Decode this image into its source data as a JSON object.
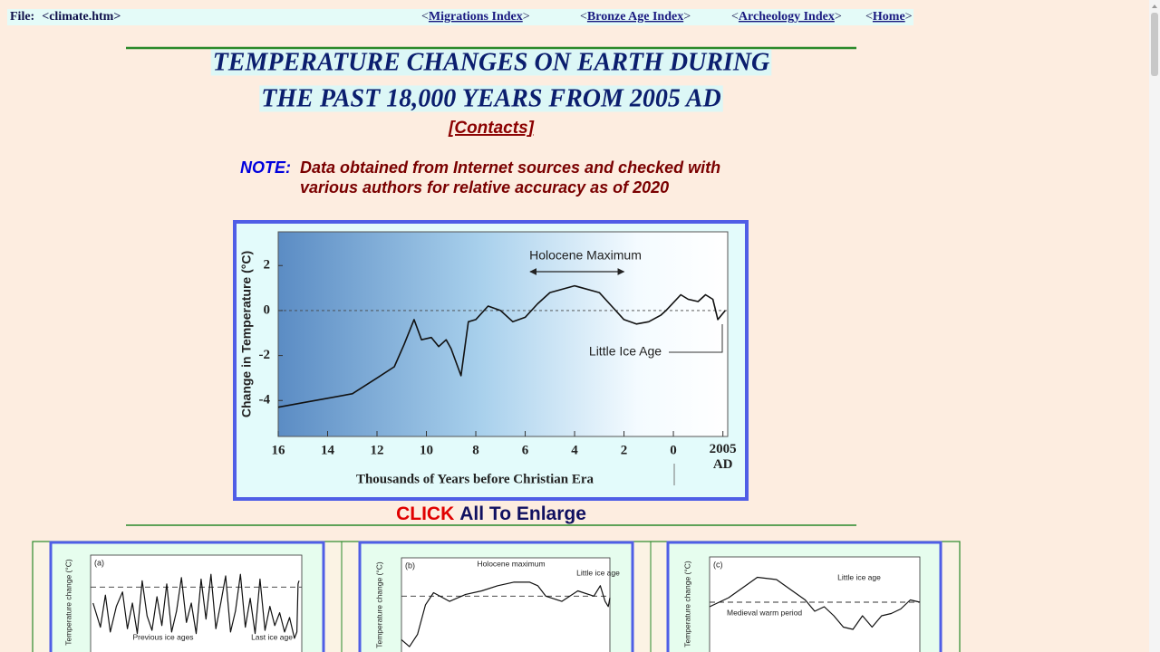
{
  "nav": {
    "file_label": "File:",
    "file_name": "<climate.htm>",
    "links": [
      {
        "open": "<",
        "label": "Migrations Index",
        "close": ">"
      },
      {
        "open": "<",
        "label": "Bronze Age Index",
        "close": ">"
      },
      {
        "open": "<",
        "label": "Archeology Index",
        "close": ">"
      },
      {
        "open": "<",
        "label": "Home",
        "close": ">"
      }
    ]
  },
  "title": [
    "TEMPERATURE CHANGES ON EARTH DURING",
    "THE PAST 18,000 YEARS FROM 2005 AD"
  ],
  "contacts": "[Contacts]",
  "note": {
    "label": "NOTE:",
    "lines": [
      "Data obtained from Internet sources and checked with",
      "various authors for relative accuracy as of 2020"
    ]
  },
  "figure": {
    "y_label": "Change in Temperature (°C)",
    "x_label": "Thousands of Years before Christian Era",
    "annotations": [
      "Holocene Maximum",
      "Little Ice Age"
    ],
    "xlim": [
      16,
      -2.2
    ],
    "ylim": [
      -5.6,
      3.5
    ],
    "xticks": [
      16,
      14,
      12,
      10,
      8,
      6,
      4,
      2,
      0,
      {
        "value": -2.005,
        "label": "2005 AD"
      }
    ],
    "yticks": [
      2,
      0,
      -2,
      -4
    ],
    "x": [
      16,
      15,
      14,
      13,
      12,
      11.3,
      10.9,
      10.5,
      10.2,
      9.8,
      9.5,
      9.2,
      9,
      8.6,
      8.3,
      8,
      7.5,
      7,
      6.5,
      6,
      5.5,
      5,
      4,
      3,
      2.5,
      2,
      1.5,
      1,
      0.5,
      0.3,
      -0.3,
      -0.6,
      -1,
      -1.3,
      -1.6,
      -1.8,
      -2.1
    ],
    "values": [
      -4.3,
      -4.1,
      -3.9,
      -3.7,
      -3.0,
      -2.5,
      -1.5,
      -0.4,
      -1.3,
      -1.2,
      -1.6,
      -1.3,
      -1.7,
      -2.9,
      -0.5,
      -0.4,
      0.2,
      0.0,
      -0.5,
      -0.3,
      0.3,
      0.8,
      1.1,
      0.8,
      0.2,
      -0.4,
      -0.6,
      -0.5,
      -0.2,
      0.0,
      0.7,
      0.5,
      0.4,
      0.7,
      0.5,
      -0.4,
      0.0
    ]
  },
  "click": {
    "word": "CLICK",
    "rest": "All To Enlarge"
  },
  "thumbnails": [
    {
      "label": "(a)",
      "y_label": "Temperature change (°C)",
      "annotations": [
        "Previous ice ages",
        "Last ice age"
      ],
      "xlim": [
        850,
        -10
      ],
      "ylim": [
        -3.6,
        2
      ],
      "x": [
        840,
        810,
        790,
        770,
        745,
        720,
        700,
        680,
        660,
        640,
        620,
        600,
        580,
        560,
        540,
        520,
        500,
        480,
        460,
        440,
        420,
        400,
        380,
        360,
        340,
        320,
        300,
        280,
        260,
        240,
        220,
        200,
        180,
        160,
        140,
        120,
        100,
        80,
        60,
        40,
        20,
        10,
        5,
        1
      ],
      "values": [
        -1.0,
        -2.5,
        -0.5,
        -2.8,
        -1.2,
        -0.3,
        -2.6,
        -1.0,
        -2.9,
        0.4,
        -1.8,
        -2.7,
        -0.6,
        -2.4,
        0.2,
        -2.8,
        -1.5,
        0.6,
        -2.2,
        -1.0,
        -2.9,
        0.5,
        -2.0,
        0.8,
        -2.6,
        -1.0,
        0.7,
        -2.8,
        -1.5,
        0.8,
        -2.5,
        -0.7,
        -2.9,
        0.5,
        -2.7,
        -1.2,
        -2.4,
        -1.6,
        -2.8,
        -1.9,
        -3.2,
        -2.8,
        0.2,
        0.4
      ]
    },
    {
      "label": "(b)",
      "y_label": "Temperature change (°C)",
      "annotations": [
        "Holocene maximum",
        "Little ice age"
      ],
      "xlim": [
        13000,
        0
      ],
      "ylim": [
        -3,
        2.2
      ],
      "x": [
        13000,
        12500,
        12000,
        11500,
        11000,
        10000,
        9000,
        8000,
        7000,
        6000,
        5000,
        4500,
        4000,
        3000,
        2000,
        1000,
        600,
        300,
        100,
        0
      ],
      "values": [
        -2.5,
        -2.9,
        -2.2,
        -0.5,
        0.2,
        -0.3,
        0.1,
        0.3,
        0.6,
        0.8,
        0.8,
        0.6,
        0.0,
        -0.3,
        0.3,
        0.0,
        0.6,
        -0.3,
        -0.6,
        -0.1
      ]
    },
    {
      "label": "(c)",
      "y_label": "Temperature change (°C)",
      "annotations": [
        "Little ice age",
        "Medieval warm period"
      ],
      "xlim": [
        900,
        2000
      ],
      "ylim": [
        -1,
        1
      ],
      "x": [
        900,
        1000,
        1100,
        1150,
        1250,
        1350,
        1400,
        1450,
        1500,
        1550,
        1600,
        1650,
        1700,
        1750,
        1800,
        1850,
        1900,
        1950,
        2000
      ],
      "values": [
        -0.1,
        0.1,
        0.4,
        0.55,
        0.5,
        0.2,
        0.05,
        -0.2,
        -0.1,
        -0.3,
        -0.55,
        -0.6,
        -0.3,
        -0.55,
        -0.3,
        -0.25,
        -0.15,
        0.05,
        0.0
      ]
    }
  ]
}
